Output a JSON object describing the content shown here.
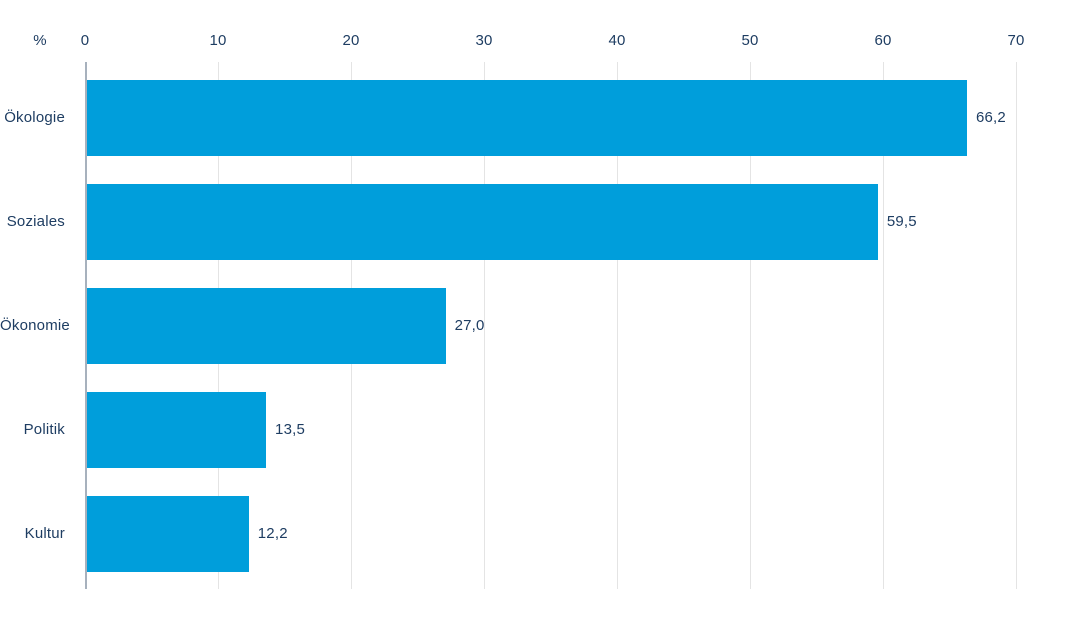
{
  "chart_data": {
    "type": "bar",
    "orientation": "horizontal",
    "title": "",
    "unit_label": "%",
    "categories": [
      "Ökologie",
      "Soziales",
      "Ökonomie",
      "Politik",
      "Kultur"
    ],
    "values": [
      66.2,
      59.5,
      27.0,
      13.5,
      12.2
    ],
    "value_labels": [
      "66,2",
      "59,5",
      "27,0",
      "13,5",
      "12,2"
    ],
    "x_ticks": [
      0,
      10,
      20,
      30,
      40,
      50,
      60,
      70
    ],
    "x_tick_labels": [
      "0",
      "10",
      "20",
      "30",
      "40",
      "50",
      "60",
      "70"
    ],
    "xlim": [
      0,
      70
    ],
    "xlabel": "",
    "ylabel": "",
    "grid": "vertical",
    "legend": "none",
    "axis_labels_position": "top",
    "bar_color": "#009edb",
    "text_color": "#1e3d62",
    "gridline_color": "#e4e4e4",
    "axis_line_color": "#a7b1bd"
  }
}
